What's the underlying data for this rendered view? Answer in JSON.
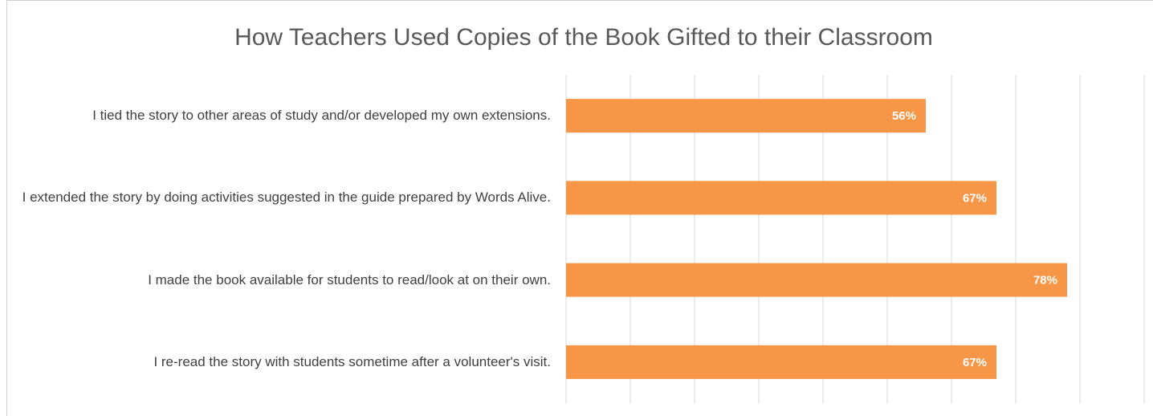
{
  "chart_data": {
    "type": "barh",
    "title": "How Teachers Used Copies of the Book Gifted to their Classroom",
    "categories": [
      "I tied the story to other areas of study and/or developed my own extensions.",
      "I extended the story by doing activities suggested in the guide prepared by Words Alive.",
      "I made the book available for students to read/look at on their own.",
      "I re-read the story with students sometime after a volunteer's visit."
    ],
    "values": [
      56,
      67,
      78,
      67
    ],
    "value_labels": [
      "56%",
      "67%",
      "78%",
      "67%"
    ],
    "color": "#f79646",
    "xlim": [
      0,
      90
    ],
    "xticks": [
      0,
      10,
      20,
      30,
      40,
      50,
      60,
      70,
      80,
      90
    ],
    "grid": true
  }
}
